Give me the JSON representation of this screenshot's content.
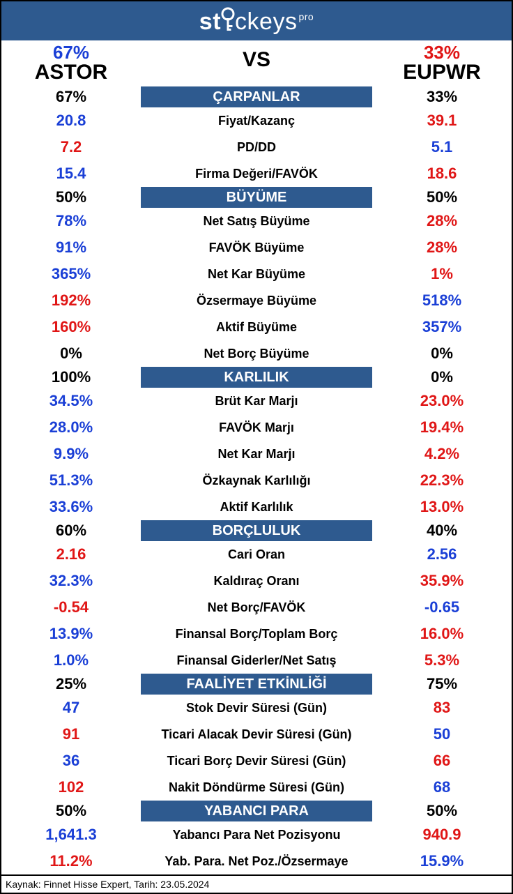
{
  "logo": {
    "text_left": "st",
    "text_mid": "ckeys",
    "sup": "pro"
  },
  "colors": {
    "blue": "#1a3fd6",
    "red": "#e01616",
    "black": "#000000",
    "header_bg": "#2e5a8f"
  },
  "overall": {
    "left_score": "67%",
    "right_score": "33%",
    "vs": "VS",
    "left_ticker": "ASTOR",
    "right_ticker": "EUPWR"
  },
  "sections": [
    {
      "title": "ÇARPANLAR",
      "left_pct": "67%",
      "right_pct": "33%",
      "rows": [
        {
          "label": "Fiyat/Kazanç",
          "left": "20.8",
          "left_c": "blue",
          "right": "39.1",
          "right_c": "red"
        },
        {
          "label": "PD/DD",
          "left": "7.2",
          "left_c": "red",
          "right": "5.1",
          "right_c": "blue"
        },
        {
          "label": "Firma Değeri/FAVÖK",
          "left": "15.4",
          "left_c": "blue",
          "right": "18.6",
          "right_c": "red"
        }
      ]
    },
    {
      "title": "BÜYÜME",
      "left_pct": "50%",
      "right_pct": "50%",
      "rows": [
        {
          "label": "Net Satış Büyüme",
          "left": "78%",
          "left_c": "blue",
          "right": "28%",
          "right_c": "red"
        },
        {
          "label": "FAVÖK Büyüme",
          "left": "91%",
          "left_c": "blue",
          "right": "28%",
          "right_c": "red"
        },
        {
          "label": "Net Kar Büyüme",
          "left": "365%",
          "left_c": "blue",
          "right": "1%",
          "right_c": "red"
        },
        {
          "label": "Özsermaye Büyüme",
          "left": "192%",
          "left_c": "red",
          "right": "518%",
          "right_c": "blue"
        },
        {
          "label": "Aktif Büyüme",
          "left": "160%",
          "left_c": "red",
          "right": "357%",
          "right_c": "blue"
        },
        {
          "label": "Net Borç Büyüme",
          "left": "0%",
          "left_c": "black",
          "right": "0%",
          "right_c": "black"
        }
      ]
    },
    {
      "title": "KARLILIK",
      "left_pct": "100%",
      "right_pct": "0%",
      "rows": [
        {
          "label": "Brüt Kar Marjı",
          "left": "34.5%",
          "left_c": "blue",
          "right": "23.0%",
          "right_c": "red"
        },
        {
          "label": "FAVÖK Marjı",
          "left": "28.0%",
          "left_c": "blue",
          "right": "19.4%",
          "right_c": "red"
        },
        {
          "label": "Net Kar Marjı",
          "left": "9.9%",
          "left_c": "blue",
          "right": "4.2%",
          "right_c": "red"
        },
        {
          "label": "Özkaynak Karlılığı",
          "left": "51.3%",
          "left_c": "blue",
          "right": "22.3%",
          "right_c": "red"
        },
        {
          "label": "Aktif Karlılık",
          "left": "33.6%",
          "left_c": "blue",
          "right": "13.0%",
          "right_c": "red"
        }
      ]
    },
    {
      "title": "BORÇLULUK",
      "left_pct": "60%",
      "right_pct": "40%",
      "rows": [
        {
          "label": "Cari Oran",
          "left": "2.16",
          "left_c": "red",
          "right": "2.56",
          "right_c": "blue"
        },
        {
          "label": "Kaldıraç Oranı",
          "left": "32.3%",
          "left_c": "blue",
          "right": "35.9%",
          "right_c": "red"
        },
        {
          "label": "Net Borç/FAVÖK",
          "left": "-0.54",
          "left_c": "red",
          "right": "-0.65",
          "right_c": "blue"
        },
        {
          "label": "Finansal Borç/Toplam Borç",
          "left": "13.9%",
          "left_c": "blue",
          "right": "16.0%",
          "right_c": "red"
        },
        {
          "label": "Finansal Giderler/Net Satış",
          "left": "1.0%",
          "left_c": "blue",
          "right": "5.3%",
          "right_c": "red"
        }
      ]
    },
    {
      "title": "FAALİYET ETKİNLİĞİ",
      "left_pct": "25%",
      "right_pct": "75%",
      "rows": [
        {
          "label": "Stok Devir Süresi (Gün)",
          "left": "47",
          "left_c": "blue",
          "right": "83",
          "right_c": "red"
        },
        {
          "label": "Ticari Alacak Devir Süresi (Gün)",
          "left": "91",
          "left_c": "red",
          "right": "50",
          "right_c": "blue"
        },
        {
          "label": "Ticari Borç Devir Süresi (Gün)",
          "left": "36",
          "left_c": "blue",
          "right": "66",
          "right_c": "red"
        },
        {
          "label": "Nakit Döndürme Süresi (Gün)",
          "left": "102",
          "left_c": "red",
          "right": "68",
          "right_c": "blue"
        }
      ]
    },
    {
      "title": "YABANCI PARA",
      "left_pct": "50%",
      "right_pct": "50%",
      "rows": [
        {
          "label": "Yabancı Para Net Pozisyonu",
          "left": "1,641.3",
          "left_c": "blue",
          "right": "940.9",
          "right_c": "red"
        },
        {
          "label": "Yab. Para. Net Poz./Özsermaye",
          "left": "11.2%",
          "left_c": "red",
          "right": "15.9%",
          "right_c": "blue"
        }
      ]
    }
  ],
  "footer": "Kaynak: Finnet Hisse Expert, Tarih: 23.05.2024"
}
